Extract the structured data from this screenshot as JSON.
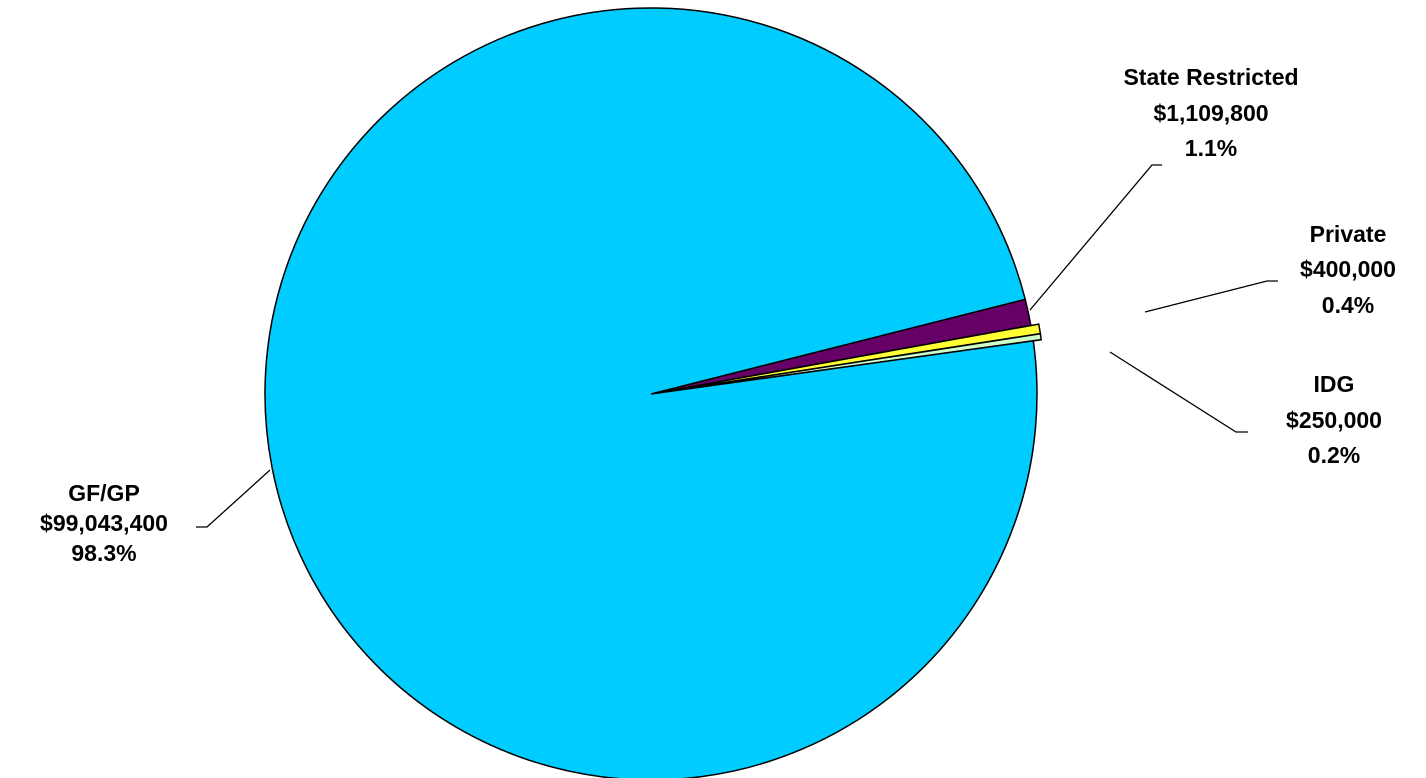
{
  "chart_data": {
    "type": "pie",
    "title": "",
    "categories": [
      "GF/GP",
      "State Restricted",
      "Private",
      "IDG"
    ],
    "values": [
      99043400,
      1109800,
      400000,
      250000
    ],
    "amount_labels": [
      "$99,043,400",
      "$1,109,800",
      "$400,000",
      "$250,000"
    ],
    "percent_labels": [
      "98.3%",
      "1.1%",
      "0.4%",
      "0.2%"
    ],
    "colors": [
      "#00CCFF",
      "#660066",
      "#FFFF33",
      "#CCFFCC"
    ],
    "exploded": [
      false,
      false,
      true,
      true
    ],
    "legend": "none"
  }
}
